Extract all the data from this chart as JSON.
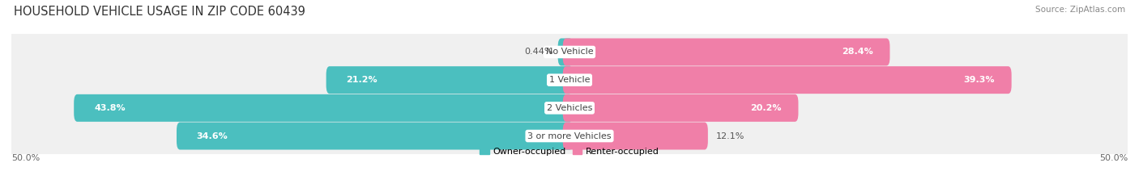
{
  "title": "HOUSEHOLD VEHICLE USAGE IN ZIP CODE 60439",
  "source": "Source: ZipAtlas.com",
  "categories": [
    "No Vehicle",
    "1 Vehicle",
    "2 Vehicles",
    "3 or more Vehicles"
  ],
  "owner_values": [
    0.44,
    21.2,
    43.8,
    34.6
  ],
  "renter_values": [
    28.4,
    39.3,
    20.2,
    12.1
  ],
  "owner_color": "#4bbfbf",
  "renter_color": "#f07fa8",
  "bar_bg_color": "#f0f0f0",
  "bar_border_color": "#dddddd",
  "axis_min": -50.0,
  "axis_max": 50.0,
  "legend_owner": "Owner-occupied",
  "legend_renter": "Renter-occupied",
  "title_fontsize": 10.5,
  "source_fontsize": 7.5,
  "label_fontsize": 8,
  "cat_fontsize": 8,
  "axis_label_fontsize": 8
}
